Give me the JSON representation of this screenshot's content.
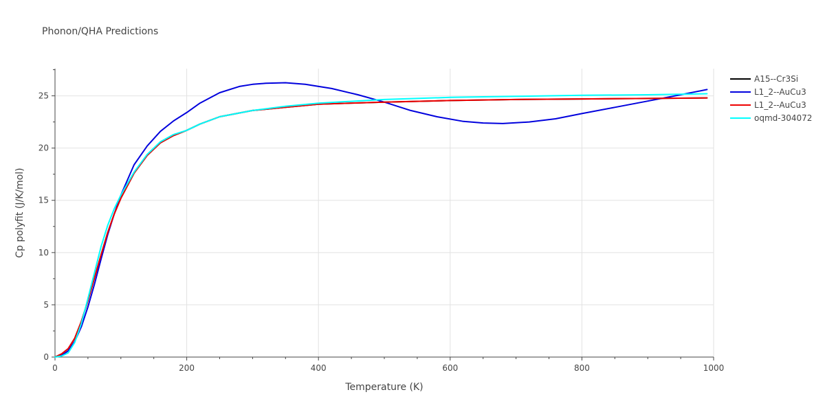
{
  "chart_data": {
    "type": "line",
    "title": "Phonon/QHA Predictions",
    "xlabel": "Temperature (K)",
    "ylabel": "Cp polyfit (J/K/mol)",
    "xlim": [
      0,
      1000
    ],
    "ylim": [
      0,
      27.6
    ],
    "xticks": [
      0,
      200,
      400,
      600,
      800,
      1000
    ],
    "yticks": [
      0,
      5,
      10,
      15,
      20,
      25
    ],
    "grid": true,
    "legend_position": "top-right",
    "series": [
      {
        "name": "A15--Cr3Si",
        "color": "#000000",
        "x": [
          0,
          10,
          20,
          30,
          40,
          50,
          60,
          70,
          80,
          90,
          100,
          120,
          140,
          160,
          180,
          200,
          220,
          250,
          300,
          350,
          400,
          500,
          600,
          700,
          800,
          900,
          990
        ],
        "y": [
          0,
          0.3,
          0.8,
          1.8,
          3.4,
          5.4,
          7.6,
          9.8,
          11.9,
          13.7,
          15.2,
          17.6,
          19.3,
          20.5,
          21.2,
          21.7,
          22.3,
          23.0,
          23.6,
          23.9,
          24.2,
          24.4,
          24.55,
          24.65,
          24.7,
          24.75,
          24.8
        ]
      },
      {
        "name": "L1_2--AuCu3",
        "color": "#0000dd",
        "x": [
          0,
          10,
          20,
          30,
          40,
          50,
          60,
          70,
          80,
          90,
          100,
          120,
          140,
          160,
          180,
          200,
          220,
          250,
          280,
          300,
          320,
          350,
          380,
          420,
          460,
          500,
          540,
          580,
          620,
          650,
          680,
          720,
          760,
          800,
          850,
          900,
          950,
          990
        ],
        "y": [
          0,
          0.15,
          0.6,
          1.5,
          2.9,
          4.8,
          7.0,
          9.4,
          11.7,
          13.7,
          15.5,
          18.4,
          20.2,
          21.6,
          22.6,
          23.4,
          24.3,
          25.3,
          25.9,
          26.1,
          26.2,
          26.25,
          26.1,
          25.7,
          25.1,
          24.4,
          23.6,
          23.0,
          22.55,
          22.4,
          22.35,
          22.5,
          22.8,
          23.3,
          23.9,
          24.5,
          25.1,
          25.6
        ]
      },
      {
        "name": "L1_2--AuCu3",
        "color": "#ee0000",
        "x": [
          0,
          10,
          20,
          30,
          40,
          50,
          60,
          70,
          80,
          90,
          100,
          120,
          140,
          160,
          180,
          200,
          220,
          250,
          300,
          350,
          400,
          500,
          600,
          700,
          800,
          900,
          990
        ],
        "y": [
          0,
          0.3,
          0.8,
          1.8,
          3.4,
          5.4,
          7.6,
          9.8,
          11.9,
          13.7,
          15.2,
          17.6,
          19.3,
          20.5,
          21.2,
          21.7,
          22.3,
          23.0,
          23.6,
          23.9,
          24.2,
          24.4,
          24.55,
          24.65,
          24.7,
          24.75,
          24.8
        ]
      },
      {
        "name": "oqmd-304072",
        "color": "#00ffff",
        "x": [
          0,
          10,
          20,
          30,
          40,
          50,
          60,
          70,
          80,
          90,
          100,
          120,
          140,
          160,
          180,
          200,
          220,
          250,
          300,
          350,
          400,
          500,
          600,
          700,
          800,
          900,
          990
        ],
        "y": [
          0,
          0.1,
          0.4,
          1.4,
          3.2,
          5.6,
          8.1,
          10.6,
          12.6,
          14.2,
          15.5,
          17.7,
          19.4,
          20.6,
          21.3,
          21.7,
          22.3,
          23.0,
          23.6,
          24.0,
          24.3,
          24.65,
          24.85,
          24.95,
          25.05,
          25.1,
          25.2
        ]
      }
    ]
  }
}
